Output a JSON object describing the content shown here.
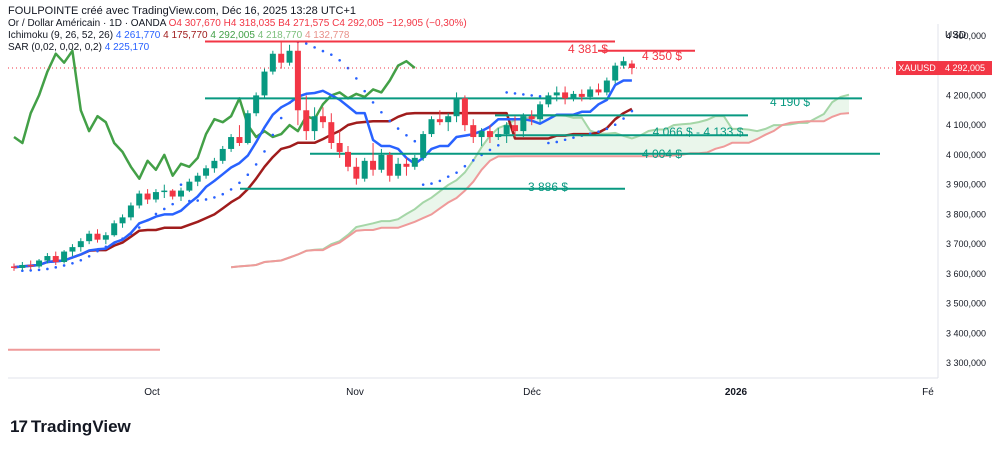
{
  "header": {
    "title": "FOULPOINTE créé avec TradingView.com, Déc 16, 2025 13:28 UTC+1",
    "symbol_line": "Or / Dollar Américain · 1D · OANDA",
    "ohlc": {
      "o": "O4 307,670",
      "h": "H4 318,035",
      "b": "B4 271,575",
      "c": "C4 292,005",
      "chg": "−12,905 (−0,30%)"
    },
    "ichimoku": {
      "label": "Ichimoku (9, 26, 52, 26)",
      "v1": "4 261,770",
      "v2": "4 175,770",
      "v3": "4 292,005",
      "v4": "4 218,770",
      "v5": "4 132,778"
    },
    "sar": {
      "label": "SAR (0,02, 0,02, 0,2)",
      "v1": "4 225,170"
    }
  },
  "axis": {
    "currency": "USD",
    "y_ticks": [
      "4 400,000",
      "4 300,000",
      "4 200,000",
      "4 100,000",
      "4 000,000",
      "3 900,000",
      "3 800,000",
      "3 700,000",
      "3 600,000",
      "3 500,000",
      "3 400,000",
      "3 300,000"
    ],
    "x_ticks": [
      {
        "label": "Oct",
        "bold": false
      },
      {
        "label": "Nov",
        "bold": false
      },
      {
        "label": "Déc",
        "bold": false
      },
      {
        "label": "2026",
        "bold": true
      },
      {
        "label": "Fé",
        "bold": false
      }
    ]
  },
  "price_badge": {
    "symbol": "XAUUSD",
    "value": "4 292,005"
  },
  "brand": {
    "name": "TradingView",
    "mark": "17"
  },
  "colors": {
    "up": "#089981",
    "down": "#f23645",
    "tenkan": "#2962ff",
    "kijun": "#a01c1c",
    "chikou": "#43a047",
    "spanA": "#a5d6a7",
    "spanB": "#ef9a9a",
    "sar": "#2962ff",
    "level_green": "#089981",
    "level_red": "#f23645"
  },
  "chart_data": {
    "type": "candlestick",
    "y_range": [
      3250,
      4440
    ],
    "x_dates": [
      "2025-09-15",
      "2026-02-01"
    ],
    "levels": [
      {
        "label": "4 381 $",
        "value": 4381,
        "color": "red"
      },
      {
        "label": "4 350 $",
        "value": 4350,
        "color": "red"
      },
      {
        "label": "4 190 $",
        "value": 4190,
        "color": "green"
      },
      {
        "label": "4 066 $ - 4 133 $",
        "value": 4133,
        "value2": 4066,
        "color": "green"
      },
      {
        "label": "4 004 $",
        "value": 4004,
        "color": "green"
      },
      {
        "label": "3 886 $",
        "value": 3886,
        "color": "green"
      }
    ],
    "candles": [
      [
        3625,
        3635,
        3610,
        3620
      ],
      [
        3620,
        3640,
        3612,
        3630
      ],
      [
        3630,
        3645,
        3615,
        3625
      ],
      [
        3625,
        3650,
        3620,
        3645
      ],
      [
        3645,
        3670,
        3635,
        3660
      ],
      [
        3660,
        3675,
        3630,
        3640
      ],
      [
        3640,
        3680,
        3635,
        3675
      ],
      [
        3675,
        3700,
        3660,
        3690
      ],
      [
        3690,
        3720,
        3675,
        3710
      ],
      [
        3710,
        3745,
        3700,
        3735
      ],
      [
        3735,
        3750,
        3705,
        3715
      ],
      [
        3715,
        3740,
        3700,
        3730
      ],
      [
        3730,
        3780,
        3725,
        3770
      ],
      [
        3770,
        3800,
        3755,
        3790
      ],
      [
        3790,
        3840,
        3780,
        3830
      ],
      [
        3830,
        3880,
        3820,
        3870
      ],
      [
        3870,
        3885,
        3835,
        3850
      ],
      [
        3850,
        3885,
        3840,
        3875
      ],
      [
        3875,
        3900,
        3855,
        3880
      ],
      [
        3880,
        3885,
        3850,
        3860
      ],
      [
        3860,
        3890,
        3845,
        3880
      ],
      [
        3880,
        3920,
        3875,
        3910
      ],
      [
        3910,
        3940,
        3895,
        3930
      ],
      [
        3930,
        3965,
        3920,
        3955
      ],
      [
        3955,
        3990,
        3940,
        3980
      ],
      [
        3980,
        4030,
        3970,
        4020
      ],
      [
        4020,
        4070,
        4010,
        4060
      ],
      [
        4060,
        4100,
        4030,
        4040
      ],
      [
        4040,
        4150,
        4035,
        4140
      ],
      [
        4140,
        4210,
        4130,
        4200
      ],
      [
        4200,
        4290,
        4190,
        4280
      ],
      [
        4280,
        4350,
        4270,
        4340
      ],
      [
        4340,
        4380,
        4290,
        4310
      ],
      [
        4310,
        4370,
        4300,
        4350
      ],
      [
        4350,
        4381,
        4100,
        4150
      ],
      [
        4150,
        4200,
        4050,
        4080
      ],
      [
        4080,
        4160,
        4050,
        4130
      ],
      [
        4130,
        4160,
        4090,
        4110
      ],
      [
        4110,
        4140,
        4020,
        4040
      ],
      [
        4040,
        4080,
        3990,
        4010
      ],
      [
        4010,
        4030,
        3945,
        3960
      ],
      [
        3960,
        3990,
        3900,
        3920
      ],
      [
        3920,
        3990,
        3910,
        3980
      ],
      [
        3980,
        4040,
        3930,
        3950
      ],
      [
        3950,
        4020,
        3940,
        4000
      ],
      [
        4000,
        4010,
        3910,
        3930
      ],
      [
        3930,
        3990,
        3920,
        3970
      ],
      [
        3970,
        3990,
        3930,
        3960
      ],
      [
        3960,
        4000,
        3950,
        3990
      ],
      [
        3990,
        4080,
        3980,
        4070
      ],
      [
        4070,
        4130,
        4060,
        4120
      ],
      [
        4120,
        4150,
        4100,
        4110
      ],
      [
        4110,
        4140,
        4080,
        4130
      ],
      [
        4130,
        4210,
        4110,
        4190
      ],
      [
        4190,
        4200,
        4080,
        4100
      ],
      [
        4100,
        4120,
        4040,
        4060
      ],
      [
        4060,
        4090,
        4030,
        4080
      ],
      [
        4080,
        4100,
        4040,
        4060
      ],
      [
        4060,
        4090,
        4050,
        4070
      ],
      [
        4070,
        4110,
        4040,
        4100
      ],
      [
        4100,
        4130,
        4060,
        4080
      ],
      [
        4080,
        4140,
        4060,
        4130
      ],
      [
        4130,
        4150,
        4100,
        4120
      ],
      [
        4120,
        4180,
        4110,
        4170
      ],
      [
        4170,
        4210,
        4160,
        4200
      ],
      [
        4200,
        4230,
        4180,
        4210
      ],
      [
        4210,
        4230,
        4170,
        4190
      ],
      [
        4190,
        4215,
        4180,
        4205
      ],
      [
        4205,
        4220,
        4180,
        4195
      ],
      [
        4195,
        4230,
        4185,
        4220
      ],
      [
        4220,
        4240,
        4200,
        4210
      ],
      [
        4210,
        4260,
        4200,
        4250
      ],
      [
        4250,
        4310,
        4240,
        4300
      ],
      [
        4300,
        4330,
        4290,
        4315
      ],
      [
        4307,
        4318,
        4271,
        4292
      ]
    ]
  }
}
